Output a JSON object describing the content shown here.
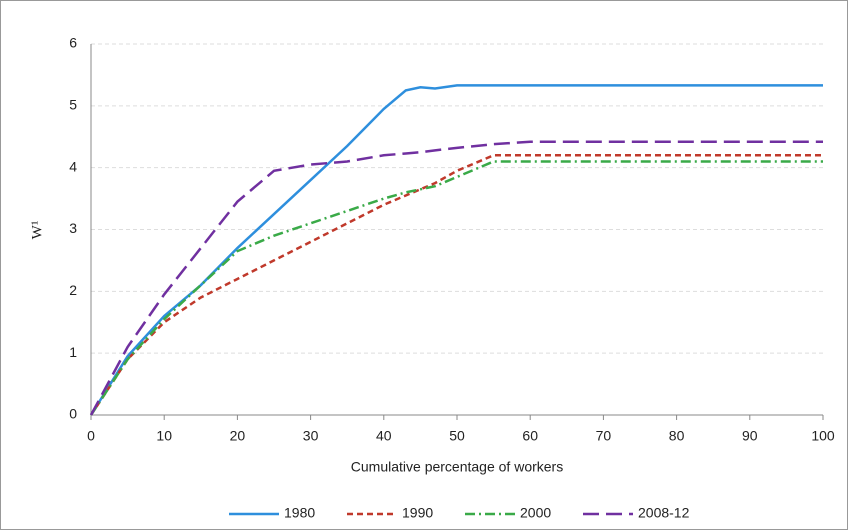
{
  "chart_data": {
    "type": "line",
    "x_label": "Cumulative percentage of workers",
    "y_label": "W¹",
    "x": [
      0,
      5,
      10,
      15,
      20,
      25,
      30,
      35,
      40,
      43,
      45,
      47,
      50,
      55,
      60,
      70,
      80,
      90,
      100
    ],
    "series": [
      {
        "name": "1980",
        "color": "#2e8fdd",
        "style": "solid",
        "values": [
          0,
          0.95,
          1.6,
          2.1,
          2.7,
          3.25,
          3.8,
          4.35,
          4.95,
          5.25,
          5.3,
          5.28,
          5.33,
          5.33,
          5.33,
          5.33,
          5.33,
          5.33,
          5.33
        ]
      },
      {
        "name": "1990",
        "color": "#c0392b",
        "style": "dashed",
        "values": [
          0,
          0.9,
          1.5,
          1.9,
          2.2,
          2.5,
          2.8,
          3.1,
          3.4,
          3.55,
          3.65,
          3.75,
          3.95,
          4.2,
          4.2,
          4.2,
          4.2,
          4.2,
          4.2
        ]
      },
      {
        "name": "2000",
        "color": "#3aaa48",
        "style": "dashdot",
        "values": [
          0,
          0.9,
          1.55,
          2.1,
          2.65,
          2.9,
          3.1,
          3.3,
          3.5,
          3.6,
          3.65,
          3.7,
          3.85,
          4.1,
          4.1,
          4.1,
          4.1,
          4.1,
          4.1
        ]
      },
      {
        "name": "2008-12",
        "color": "#7030a0",
        "style": "longdash",
        "values": [
          0,
          1.1,
          1.95,
          2.7,
          3.45,
          3.95,
          4.05,
          4.1,
          4.2,
          4.23,
          4.25,
          4.28,
          4.32,
          4.38,
          4.42,
          4.42,
          4.42,
          4.42,
          4.42
        ]
      }
    ],
    "xlim": [
      0,
      100
    ],
    "xticks": [
      0,
      10,
      20,
      30,
      40,
      50,
      60,
      70,
      80,
      90,
      100
    ],
    "ylim": [
      0,
      6
    ],
    "yticks": [
      0,
      1,
      2,
      3,
      4,
      5,
      6
    ],
    "grid": true,
    "legend": "bottom"
  }
}
